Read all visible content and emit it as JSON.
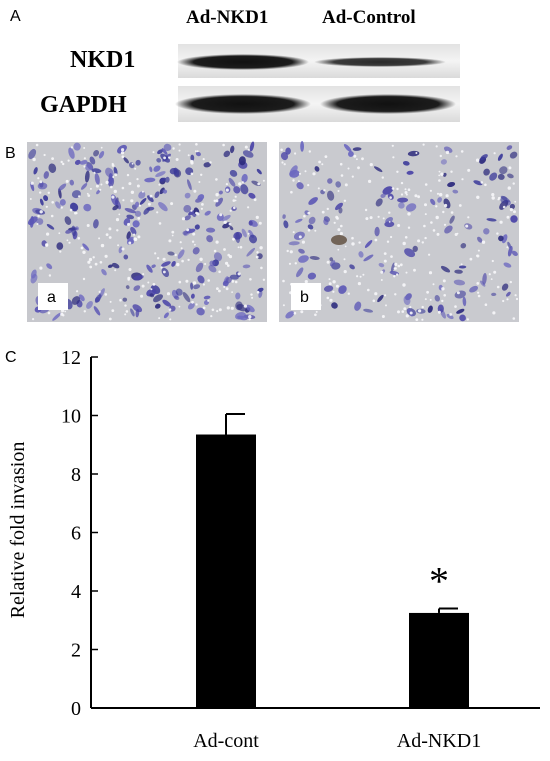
{
  "panel_a": {
    "label": "A",
    "lane_labels": [
      "Ad-NKD1",
      "Ad-Control"
    ],
    "row_labels": [
      "NKD1",
      "GAPDH"
    ]
  },
  "panel_b": {
    "label": "B",
    "image_labels": [
      "a",
      "b"
    ]
  },
  "panel_c": {
    "label": "C"
  },
  "chart_data": {
    "type": "bar",
    "categories": [
      "Ad-cont",
      "Ad-NKD1"
    ],
    "values": [
      9.35,
      3.25
    ],
    "error": [
      0.7,
      0.15
    ],
    "ylabel": "Relative fold invasion",
    "xlabel": "",
    "ylim": [
      0,
      12
    ],
    "yticks": [
      0,
      2,
      4,
      6,
      8,
      10,
      12
    ],
    "tick_labels": [
      "0",
      "2",
      "4",
      "6",
      "8",
      "10",
      "12"
    ],
    "annotations": [
      {
        "category": "Ad-NKD1",
        "text": "*"
      }
    ],
    "grid": false,
    "bar_color": "#000000"
  }
}
